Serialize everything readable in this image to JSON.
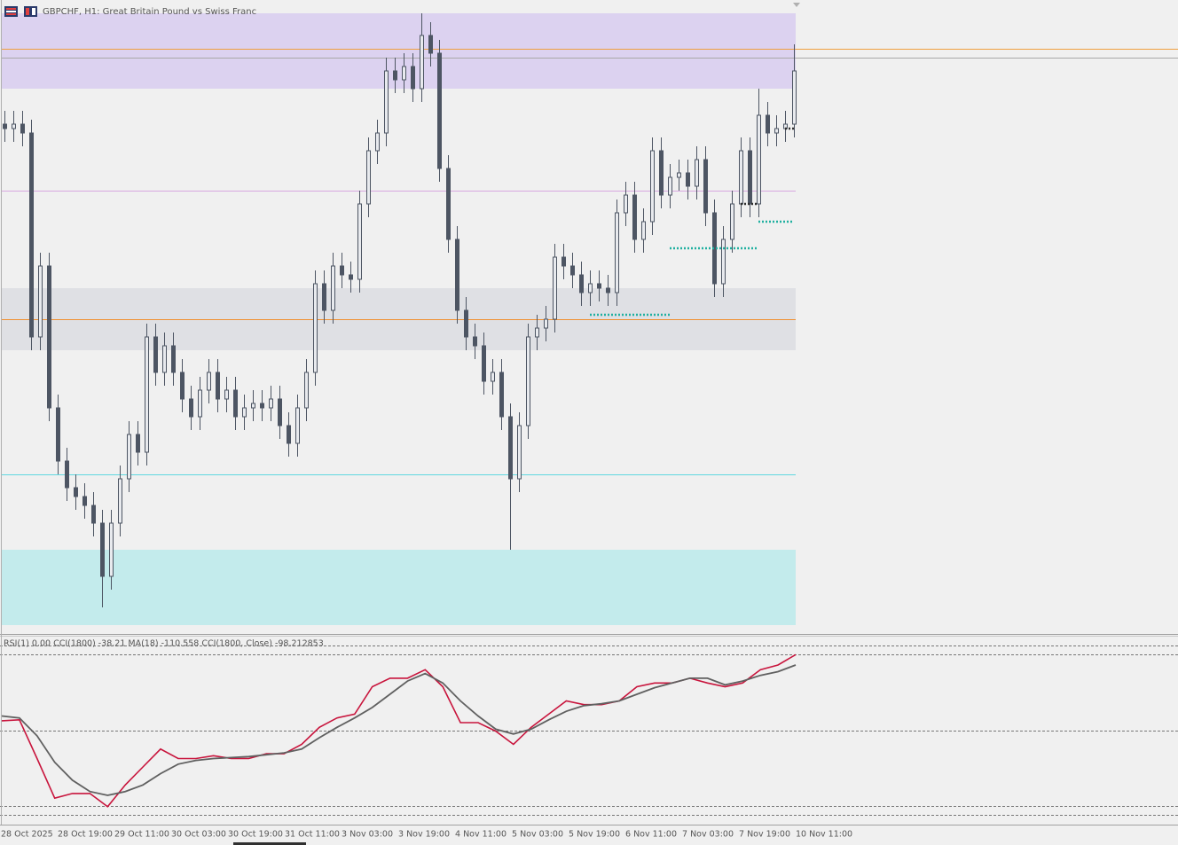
{
  "chart_data": [
    {
      "type": "candlestick",
      "title": "GBPCHF, H1:  Great Britain Pound vs Swiss Franc",
      "ylim": [
        1.0497,
        1.064
      ],
      "open": [
        1.0612,
        1.0611,
        1.0612,
        1.061,
        1.0564,
        1.058,
        1.0548,
        1.0536,
        1.053,
        1.0528,
        1.0526,
        1.0522,
        1.051,
        1.0522,
        1.0532,
        1.0542,
        1.0538,
        1.0564,
        1.0556,
        1.0562,
        1.0556,
        1.055,
        1.0546,
        1.0552,
        1.0556,
        1.055,
        1.0552,
        1.0546,
        1.0548,
        1.0549,
        1.0548,
        1.055,
        1.0544,
        1.054,
        1.0548,
        1.0556,
        1.0576,
        1.057,
        1.058,
        1.0578,
        1.0577,
        1.0594,
        1.0606,
        1.061,
        1.0624,
        1.0622,
        1.0625,
        1.062,
        1.0632,
        1.0628,
        1.0602,
        1.0586,
        1.057,
        1.0564,
        1.0562,
        1.0554,
        1.0556,
        1.0546,
        1.0532,
        1.0544,
        1.0564,
        1.0566,
        1.0568,
        1.0582,
        1.058,
        1.0578,
        1.0574,
        1.0576,
        1.0575,
        1.0574,
        1.0592,
        1.0596,
        1.0586,
        1.059,
        1.0606,
        1.0596,
        1.06,
        1.0601,
        1.0598,
        1.0604,
        1.0592,
        1.0576,
        1.0586,
        1.0594,
        1.0606,
        1.0594,
        1.0614,
        1.061,
        1.0611,
        1.0612
      ],
      "high": [
        1.0615,
        1.0615,
        1.0615,
        1.0613,
        1.0583,
        1.0583,
        1.0551,
        1.0539,
        1.0533,
        1.0531,
        1.0529,
        1.0525,
        1.0525,
        1.0535,
        1.0545,
        1.0545,
        1.0567,
        1.0567,
        1.0565,
        1.0565,
        1.0559,
        1.0553,
        1.0555,
        1.0559,
        1.0559,
        1.0555,
        1.0555,
        1.0551,
        1.0552,
        1.0552,
        1.0553,
        1.0553,
        1.0547,
        1.0551,
        1.0559,
        1.0579,
        1.0579,
        1.0583,
        1.0583,
        1.0581,
        1.0597,
        1.0609,
        1.0613,
        1.0627,
        1.0627,
        1.0628,
        1.0628,
        1.0637,
        1.0635,
        1.0631,
        1.0605,
        1.0589,
        1.0573,
        1.0567,
        1.0565,
        1.0559,
        1.0559,
        1.0549,
        1.0547,
        1.0567,
        1.0569,
        1.0571,
        1.0585,
        1.0585,
        1.0583,
        1.0581,
        1.0579,
        1.0579,
        1.0578,
        1.0595,
        1.0599,
        1.0599,
        1.0593,
        1.0609,
        1.0609,
        1.0603,
        1.0604,
        1.0604,
        1.0607,
        1.0607,
        1.0595,
        1.0589,
        1.0597,
        1.0609,
        1.0609,
        1.062,
        1.0617,
        1.0614,
        1.0615,
        1.063
      ],
      "low": [
        1.0608,
        1.0608,
        1.0607,
        1.0561,
        1.0561,
        1.0545,
        1.0533,
        1.0527,
        1.0525,
        1.0523,
        1.0519,
        1.0503,
        1.0507,
        1.0519,
        1.0529,
        1.0535,
        1.0535,
        1.0553,
        1.0553,
        1.0553,
        1.0547,
        1.0543,
        1.0543,
        1.0549,
        1.0547,
        1.0547,
        1.0543,
        1.0543,
        1.0545,
        1.0545,
        1.0545,
        1.0541,
        1.0537,
        1.0537,
        1.0545,
        1.0553,
        1.0567,
        1.0567,
        1.0575,
        1.0574,
        1.0574,
        1.0591,
        1.0603,
        1.0607,
        1.0619,
        1.0619,
        1.0617,
        1.0617,
        1.0625,
        1.0599,
        1.0583,
        1.0567,
        1.0561,
        1.0559,
        1.0551,
        1.0551,
        1.0543,
        1.0516,
        1.0529,
        1.0541,
        1.0561,
        1.0563,
        1.0565,
        1.0577,
        1.0575,
        1.0571,
        1.0571,
        1.0572,
        1.0571,
        1.0571,
        1.0589,
        1.0583,
        1.0583,
        1.0587,
        1.0593,
        1.0593,
        1.0597,
        1.0595,
        1.0595,
        1.0589,
        1.0573,
        1.0573,
        1.0583,
        1.0591,
        1.0591,
        1.0591,
        1.0607,
        1.0607,
        1.0608,
        1.0609
      ],
      "close": [
        1.0611,
        1.0612,
        1.061,
        1.0564,
        1.058,
        1.0548,
        1.0536,
        1.053,
        1.0528,
        1.0526,
        1.0522,
        1.051,
        1.0522,
        1.0532,
        1.0542,
        1.0538,
        1.0564,
        1.0556,
        1.0562,
        1.0556,
        1.055,
        1.0546,
        1.0552,
        1.0556,
        1.055,
        1.0552,
        1.0546,
        1.0548,
        1.0549,
        1.0548,
        1.055,
        1.0544,
        1.054,
        1.0548,
        1.0556,
        1.0576,
        1.057,
        1.058,
        1.0578,
        1.0577,
        1.0594,
        1.0606,
        1.061,
        1.0624,
        1.0622,
        1.0625,
        1.062,
        1.0632,
        1.0628,
        1.0602,
        1.0586,
        1.057,
        1.0564,
        1.0562,
        1.0554,
        1.0556,
        1.0546,
        1.0532,
        1.0544,
        1.0564,
        1.0566,
        1.0568,
        1.0582,
        1.058,
        1.0578,
        1.0574,
        1.0576,
        1.0575,
        1.0574,
        1.0592,
        1.0596,
        1.0586,
        1.059,
        1.0606,
        1.0596,
        1.06,
        1.0601,
        1.0598,
        1.0604,
        1.0592,
        1.0576,
        1.0586,
        1.0594,
        1.0606,
        1.0594,
        1.0614,
        1.061,
        1.0611,
        1.0612,
        1.0624
      ],
      "candle_color": "#4d5563",
      "up_fill": "#e8eaee",
      "down_fill": "#4d5563",
      "zones": [
        {
          "top": 1.0637,
          "bottom": 1.062,
          "color": "#dcd2f0"
        },
        {
          "top": 1.0575,
          "bottom": 1.0561,
          "color": "#dfe0e4"
        },
        {
          "top": 1.0516,
          "bottom": 1.0499,
          "color": "#c3ebec"
        }
      ],
      "lines": [
        {
          "value": 1.0629,
          "color": "#f0a040",
          "extend": true
        },
        {
          "value": 1.0627,
          "color": "#a8a8a8",
          "extend": true
        },
        {
          "value": 1.0597,
          "color": "#d8a8e0",
          "extend": false
        },
        {
          "value": 1.0568,
          "color": "#f09030",
          "extend": false
        },
        {
          "value": 1.0533,
          "color": "#60d8e0",
          "extend": false
        }
      ],
      "segments": [
        {
          "value": 1.0569,
          "from": 66,
          "to": 75,
          "color": "#20b0a0"
        },
        {
          "value": 1.0584,
          "from": 75,
          "to": 85,
          "color": "#20b0a0"
        },
        {
          "value": 1.059,
          "from": 85,
          "to": 89,
          "color": "#20b0a0"
        },
        {
          "value": 1.0611,
          "from": 88,
          "to": 89,
          "color": "#303030"
        },
        {
          "value": 1.0594,
          "from": 83,
          "to": 85,
          "color": "#303030"
        }
      ]
    },
    {
      "type": "line",
      "label": "RSI(1) 0.00 CCI(1800) -38.21 MA(18) -110.558 CCI(1800, Close) -98.212853",
      "ylim": [
        -100,
        100
      ],
      "levels": [
        90,
        80,
        0,
        -80,
        -90
      ],
      "series": [
        {
          "color": "#c8143c",
          "values": [
            10,
            11,
            -30,
            -72,
            -67,
            -67,
            -81,
            -58,
            -39,
            -20,
            -30,
            -30,
            -27,
            -30,
            -30,
            -25,
            -25,
            -15,
            3,
            13,
            17,
            46,
            55,
            55,
            64,
            46,
            8,
            8,
            -1,
            -15,
            3,
            17,
            31,
            27,
            27,
            31,
            46,
            50,
            50,
            55,
            50,
            46,
            50,
            64,
            69,
            80
          ]
        },
        {
          "color": "#606060",
          "values": [
            15,
            13,
            -6,
            -34,
            -53,
            -65,
            -69,
            -65,
            -58,
            -46,
            -36,
            -32,
            -30,
            -29,
            -28,
            -26,
            -24,
            -20,
            -8,
            3,
            13,
            24,
            38,
            52,
            60,
            50,
            31,
            15,
            1,
            -4,
            1,
            11,
            20,
            26,
            28,
            31,
            38,
            45,
            50,
            55,
            55,
            48,
            52,
            58,
            62,
            69
          ]
        }
      ],
      "x_labels": [
        "28 Oct 2025",
        "28 Oct 19:00",
        "29 Oct 11:00",
        "30 Oct 03:00",
        "30 Oct 19:00",
        "31 Oct 11:00",
        "3 Nov 03:00",
        "3 Nov 19:00",
        "4 Nov 11:00",
        "5 Nov 03:00",
        "5 Nov 19:00",
        "6 Nov 11:00",
        "7 Nov 03:00",
        "7 Nov 19:00",
        "10 Nov 11:00"
      ]
    }
  ]
}
